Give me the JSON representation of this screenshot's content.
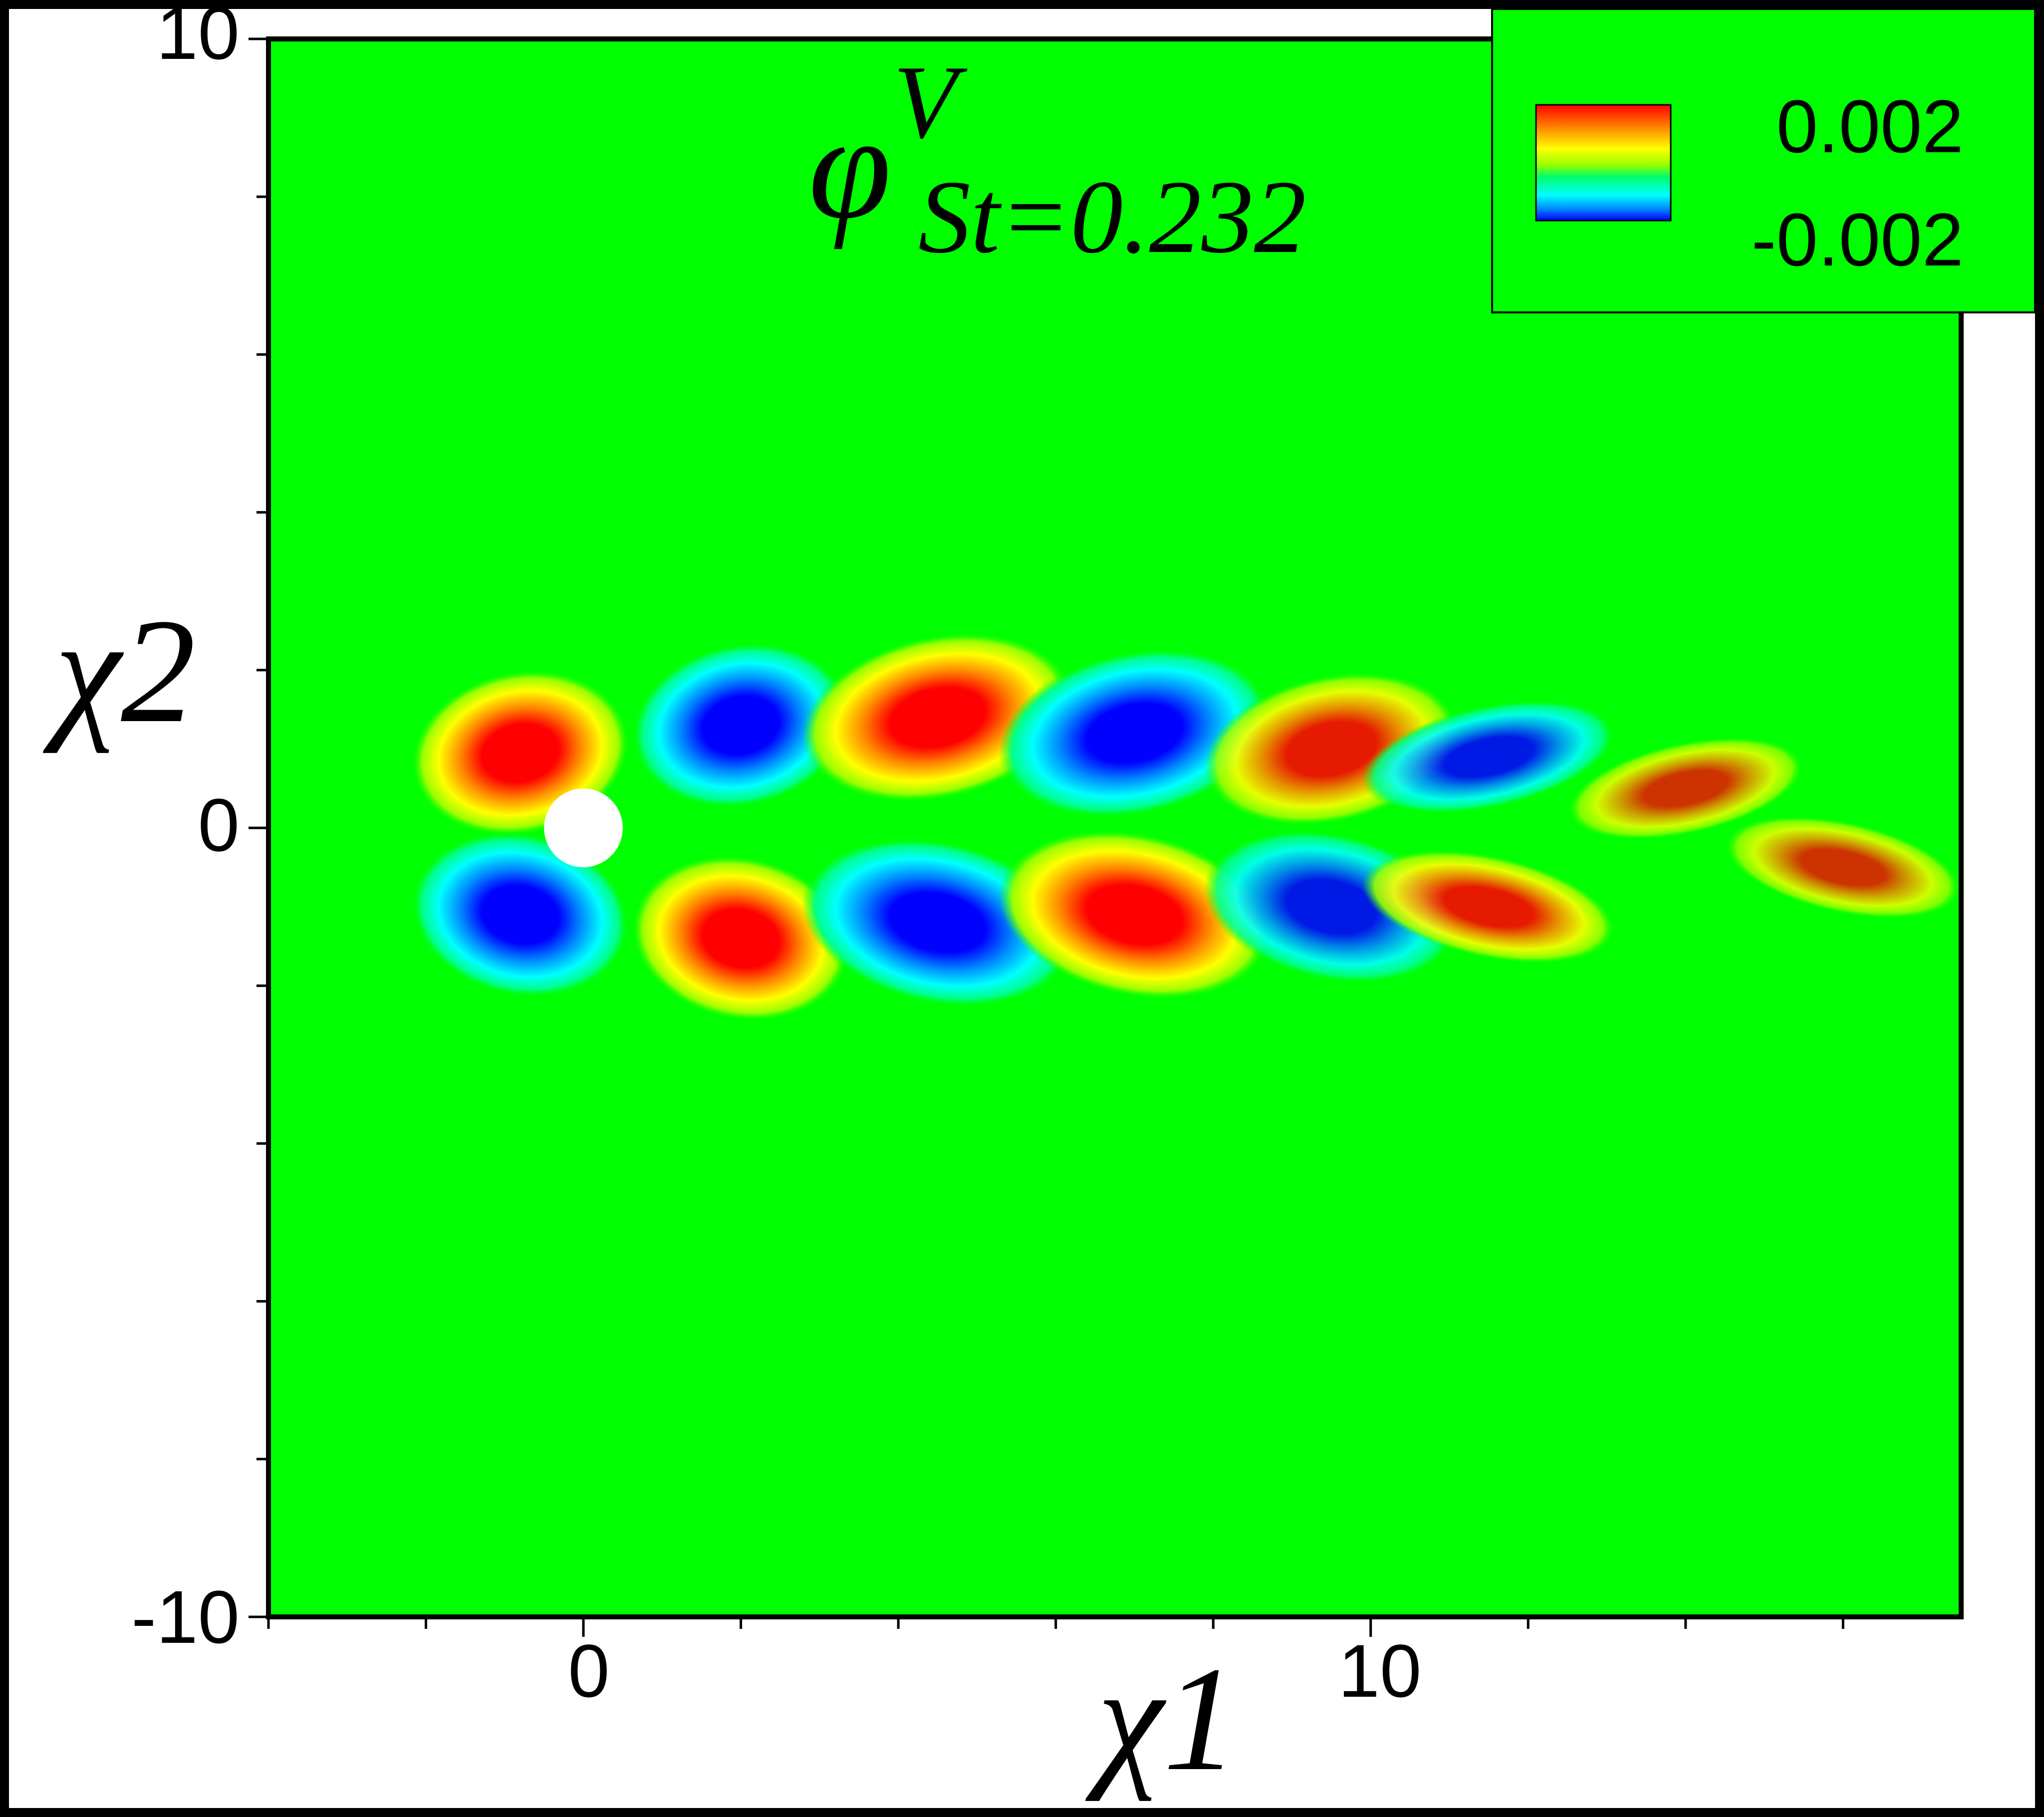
{
  "chart_data": {
    "type": "heatmap",
    "title": "φ",
    "title_superscript": "V",
    "title_subscript": "St=0.232",
    "xlabel": "χ1",
    "ylabel": "χ2",
    "xlim": [
      -4,
      17.5
    ],
    "ylim": [
      -10,
      10
    ],
    "x_ticks": [
      0,
      10
    ],
    "y_ticks": [
      10,
      0,
      -10
    ],
    "x_tick_labels": [
      "0",
      "10"
    ],
    "y_tick_labels": [
      "10",
      "0",
      "-10"
    ],
    "x_minor_step": 2,
    "y_minor_step": 2,
    "colorbar": {
      "max_label": "0.002",
      "min_label": "-0.002",
      "max": 0.002,
      "min": -0.002,
      "placement": "top-right"
    },
    "colormap": [
      "#0000ff",
      "#00c8ff",
      "#00ffff",
      "#00ff66",
      "#00ff00",
      "#99ff00",
      "#ffff00",
      "#ff8800",
      "#ff0000"
    ],
    "background_color": "#00ff00",
    "cylinder": {
      "center": [
        0,
        0
      ],
      "radius": 0.5
    },
    "lobes": [
      {
        "x": -0.8,
        "y": 0.95,
        "value": 0.002
      },
      {
        "x": -0.8,
        "y": -1.1,
        "value": -0.002
      },
      {
        "x": 2.0,
        "y": 1.3,
        "value": -0.002
      },
      {
        "x": 2.0,
        "y": -1.4,
        "value": 0.002
      },
      {
        "x": 4.5,
        "y": 1.4,
        "value": 0.002
      },
      {
        "x": 4.5,
        "y": -1.2,
        "value": -0.002
      },
      {
        "x": 7.0,
        "y": 1.2,
        "value": -0.002
      },
      {
        "x": 7.0,
        "y": -1.1,
        "value": 0.002
      },
      {
        "x": 9.5,
        "y": 1.0,
        "value": 0.0015
      },
      {
        "x": 9.5,
        "y": -1.0,
        "value": -0.0015
      },
      {
        "x": 11.5,
        "y": 0.9,
        "value": -0.0015
      },
      {
        "x": 11.5,
        "y": -1.0,
        "value": 0.0015
      },
      {
        "x": 14.0,
        "y": 0.5,
        "value": 0.001
      },
      {
        "x": 16.0,
        "y": -0.5,
        "value": 0.001
      }
    ]
  }
}
